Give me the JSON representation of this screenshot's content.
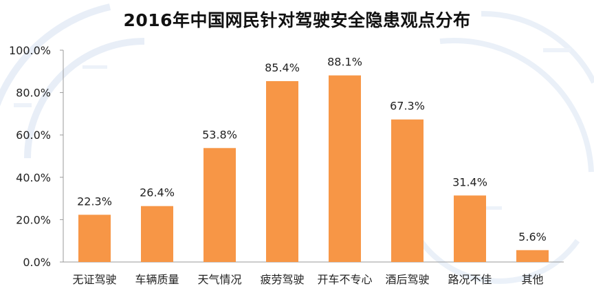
{
  "title": "2016年中国网民针对驾驶安全隐患观点分布",
  "colors": {
    "bar": "#f79646",
    "axis": "#9a9a9a",
    "text": "#222222"
  },
  "chart_data": {
    "type": "bar",
    "categories": [
      "无证驾驶",
      "车辆质量",
      "天气情况",
      "疲劳驾驶",
      "开车不专心",
      "酒后驾驶",
      "路况不佳",
      "其他"
    ],
    "values": [
      22.3,
      26.4,
      53.8,
      85.4,
      88.1,
      67.3,
      31.4,
      5.6
    ],
    "data_labels": [
      "22.3%",
      "26.4%",
      "53.8%",
      "85.4%",
      "88.1%",
      "67.3%",
      "31.4%",
      "5.6%"
    ],
    "ylim": [
      0,
      100
    ],
    "yticks": [
      0,
      20,
      40,
      60,
      80,
      100
    ],
    "ytick_labels": [
      "0.0%",
      "20.0%",
      "40.0%",
      "60.0%",
      "80.0%",
      "100.0%"
    ],
    "grid": false,
    "legend": "none"
  }
}
